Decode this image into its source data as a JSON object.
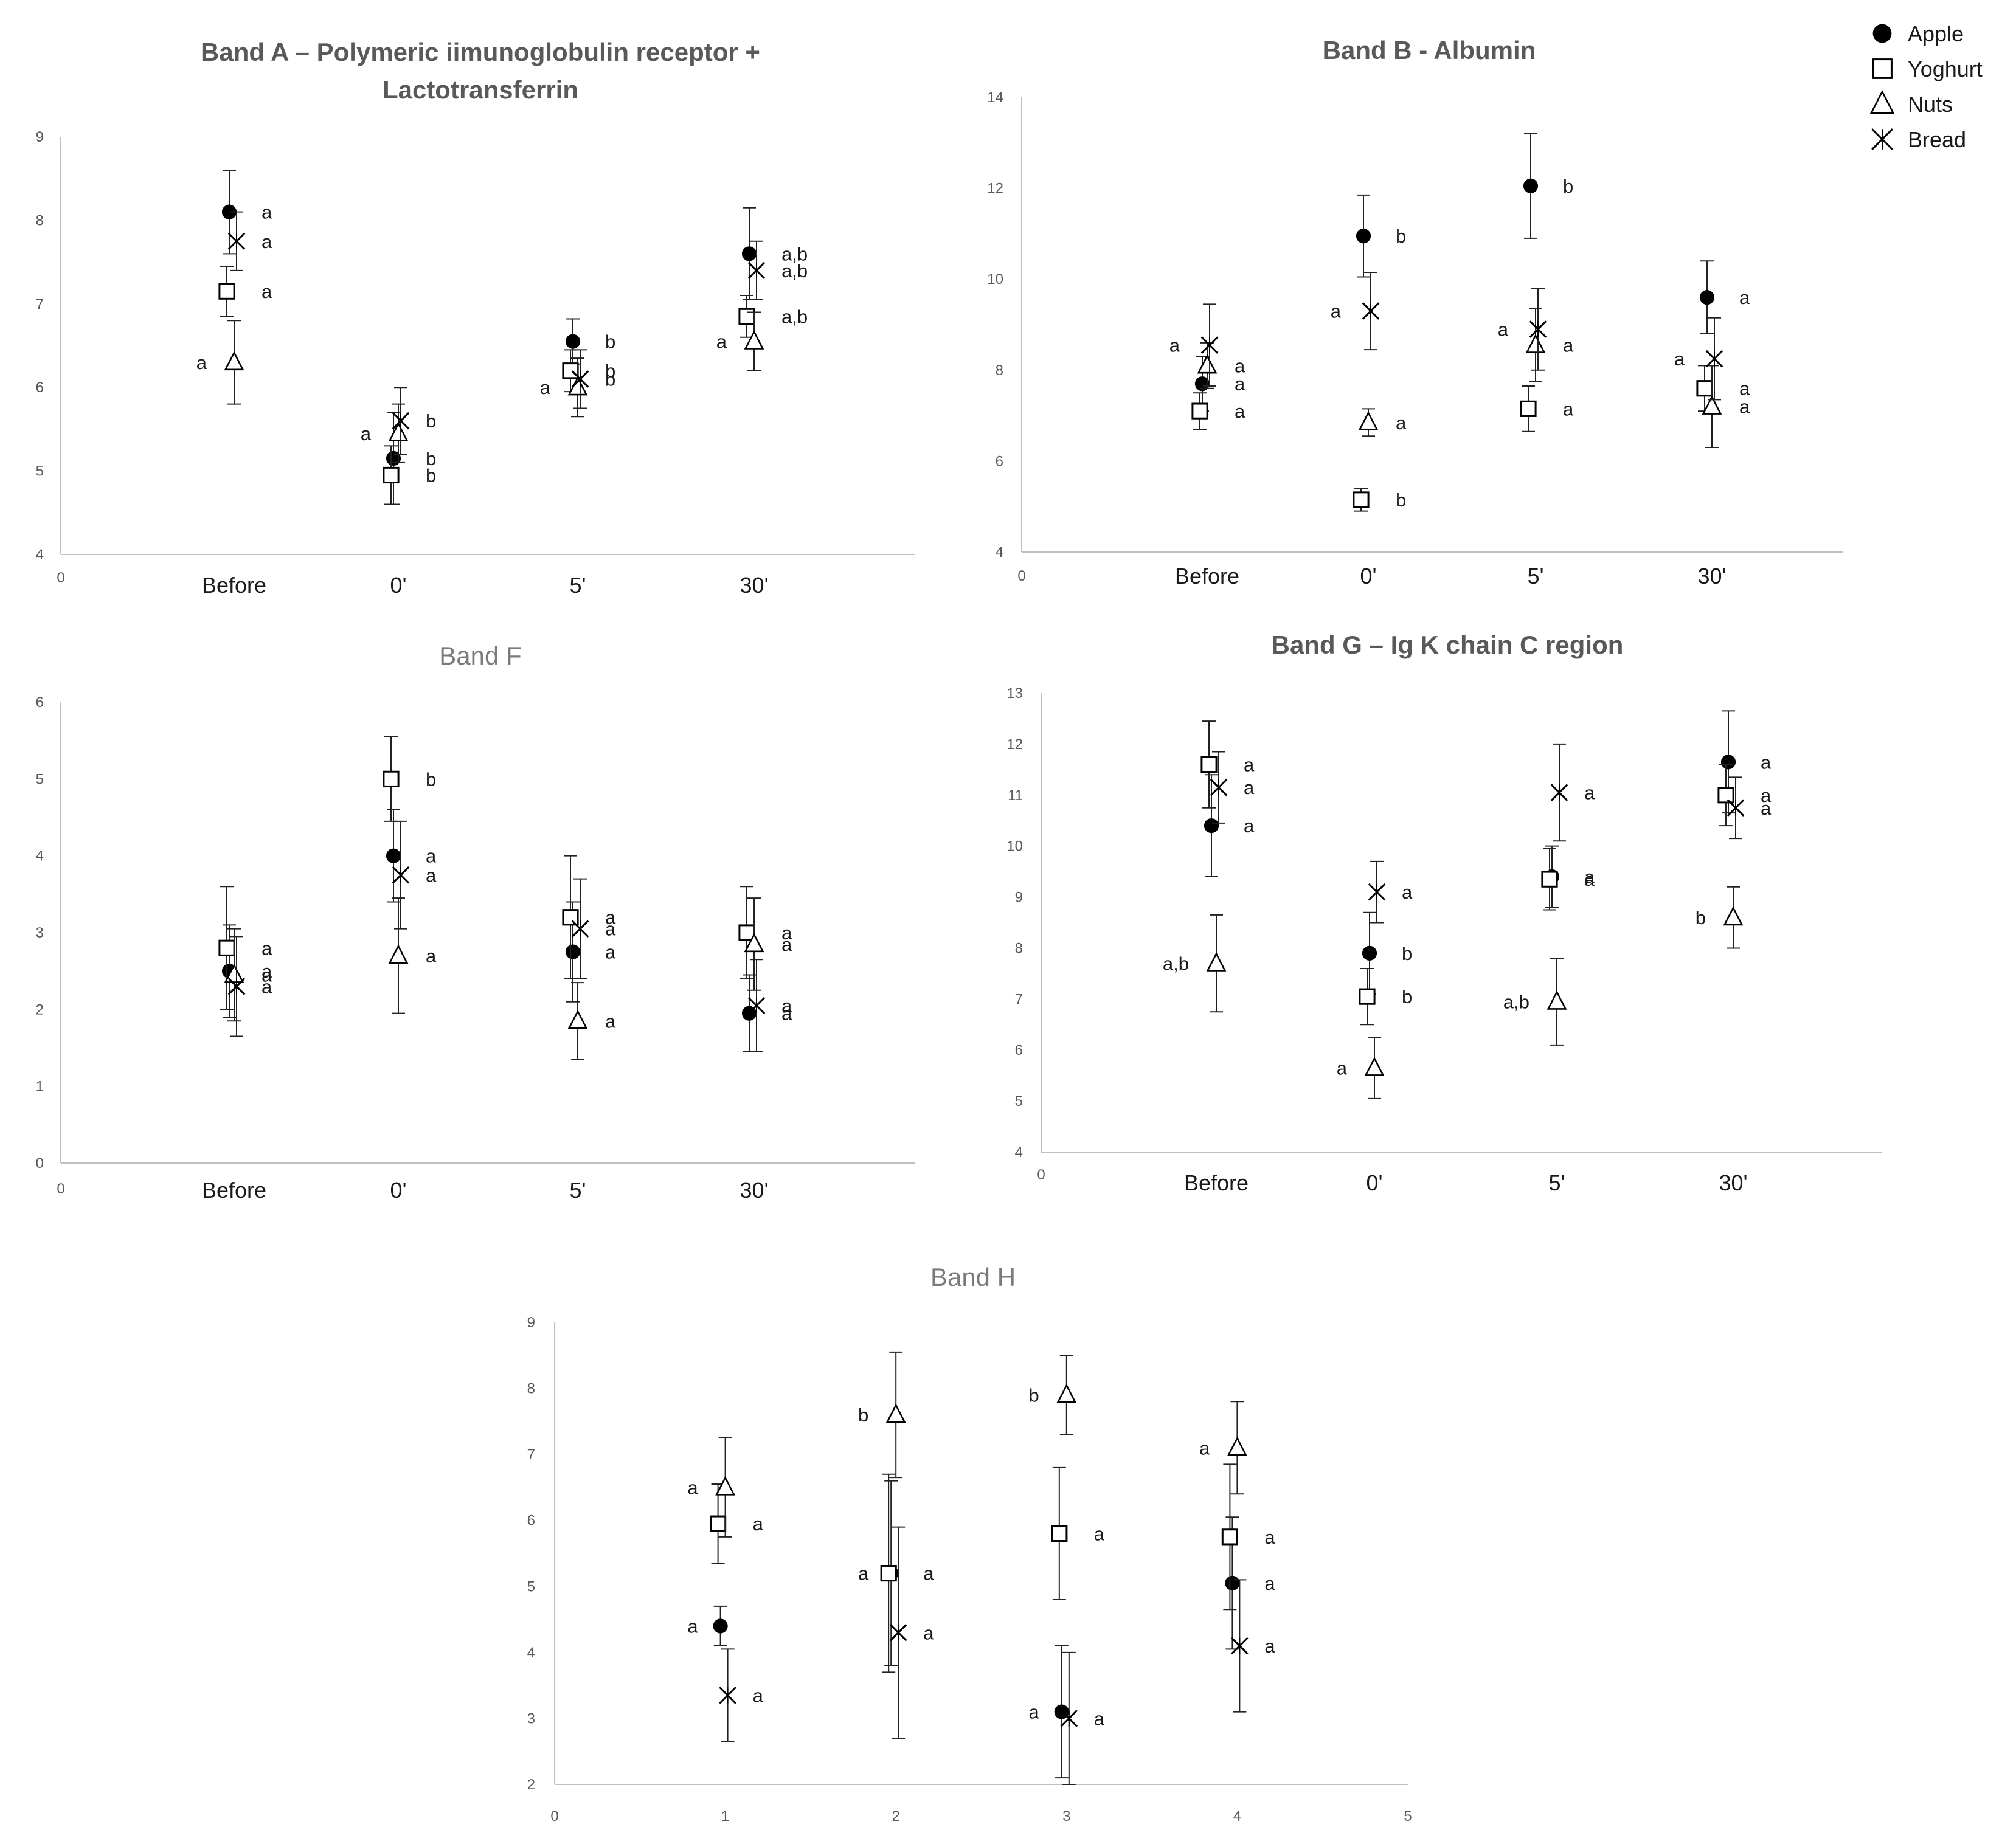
{
  "legend": [
    {
      "name": "Apple",
      "marker": "filled-circle"
    },
    {
      "name": "Yoghurt",
      "marker": "open-square"
    },
    {
      "name": "Nuts",
      "marker": "open-triangle"
    },
    {
      "name": "Bread",
      "marker": "star-cross"
    }
  ],
  "chart_data": [
    {
      "id": "A",
      "type": "scatter",
      "title": [
        "Band A – Polymeric iimunoglobulin receptor +",
        "Lactotransferrin"
      ],
      "ylim": [
        4,
        9
      ],
      "yticks": [
        4,
        5,
        6,
        7,
        8,
        9
      ],
      "xlim": [
        0,
        5
      ],
      "x_origin_label": "0",
      "categories": [
        "Before",
        "0'",
        "5'",
        "30'"
      ],
      "series": [
        {
          "name": "Apple",
          "marker": "filled-circle",
          "values": [
            8.1,
            5.15,
            6.55,
            7.6
          ],
          "errors": [
            0.5,
            0.55,
            0.27,
            0.55
          ],
          "labels": [
            "a",
            "b",
            "b",
            "a,b"
          ]
        },
        {
          "name": "Yoghurt",
          "marker": "open-square",
          "values": [
            7.15,
            4.95,
            6.2,
            6.85
          ],
          "errors": [
            0.3,
            0.35,
            0.25,
            0.25
          ],
          "labels": [
            "a",
            "b",
            "b",
            "a,b"
          ]
        },
        {
          "name": "Nuts",
          "marker": "open-triangle",
          "values": [
            6.3,
            5.45,
            6.0,
            6.55
          ],
          "errors": [
            0.5,
            0.35,
            0.35,
            0.35
          ],
          "labels": [
            "a",
            "a",
            "a",
            "a"
          ]
        },
        {
          "name": "Bread",
          "marker": "star-cross",
          "values": [
            7.75,
            5.6,
            6.1,
            7.4
          ],
          "errors": [
            0.35,
            0.4,
            0.35,
            0.35
          ],
          "labels": [
            "a",
            "b",
            "b",
            "a,b"
          ]
        }
      ]
    },
    {
      "id": "B",
      "type": "scatter",
      "title": [
        "Band B - Albumin"
      ],
      "ylim": [
        4,
        14
      ],
      "yticks": [
        4,
        6,
        8,
        10,
        12,
        14
      ],
      "xlim": [
        0,
        5
      ],
      "x_origin_label": "0",
      "categories": [
        "Before",
        "0'",
        "5'",
        "30'"
      ],
      "series": [
        {
          "name": "Apple",
          "marker": "filled-circle",
          "values": [
            7.7,
            10.95,
            12.05,
            9.6
          ],
          "errors": [
            0.6,
            0.9,
            1.15,
            0.8
          ],
          "labels": [
            "a",
            "b",
            "b",
            "a"
          ]
        },
        {
          "name": "Yoghurt",
          "marker": "open-square",
          "values": [
            7.1,
            5.15,
            7.15,
            7.6
          ],
          "errors": [
            0.4,
            0.25,
            0.5,
            0.5
          ],
          "labels": [
            "a",
            "b",
            "a",
            "a"
          ]
        },
        {
          "name": "Nuts",
          "marker": "open-triangle",
          "values": [
            8.1,
            6.85,
            8.55,
            7.2
          ],
          "errors": [
            0.5,
            0.3,
            0.8,
            0.9
          ],
          "labels": [
            "a",
            "a",
            "a",
            "a"
          ]
        },
        {
          "name": "Bread",
          "marker": "star-cross",
          "values": [
            8.55,
            9.3,
            8.9,
            8.25
          ],
          "errors": [
            0.9,
            0.85,
            0.9,
            0.9
          ],
          "labels": [
            "a",
            "a",
            "a",
            "a"
          ]
        }
      ]
    },
    {
      "id": "F",
      "type": "scatter",
      "title": [
        "Band F"
      ],
      "title_weight": "normal",
      "ylim": [
        0,
        6
      ],
      "yticks": [
        0,
        1,
        2,
        3,
        4,
        5,
        6
      ],
      "xlim": [
        0,
        5
      ],
      "x_origin_label": "0",
      "categories": [
        "Before",
        "0'",
        "5'",
        "30'"
      ],
      "series": [
        {
          "name": "Apple",
          "marker": "filled-circle",
          "values": [
            2.5,
            4.0,
            2.75,
            1.95
          ],
          "errors": [
            0.6,
            0.6,
            0.65,
            0.5
          ],
          "labels": [
            "a",
            "a",
            "a",
            "a"
          ]
        },
        {
          "name": "Yoghurt",
          "marker": "open-square",
          "values": [
            2.8,
            5.0,
            3.2,
            3.0
          ],
          "errors": [
            0.8,
            0.55,
            0.8,
            0.6
          ],
          "labels": [
            "a",
            "b",
            "a",
            "a"
          ]
        },
        {
          "name": "Nuts",
          "marker": "open-triangle",
          "values": [
            2.45,
            2.7,
            1.85,
            2.85
          ],
          "errors": [
            0.6,
            0.75,
            0.5,
            0.6
          ],
          "labels": [
            "a",
            "a",
            "a",
            "a"
          ]
        },
        {
          "name": "Bread",
          "marker": "star-cross",
          "values": [
            2.3,
            3.75,
            3.05,
            2.05
          ],
          "errors": [
            0.65,
            0.7,
            0.65,
            0.6
          ],
          "labels": [
            "a",
            "a",
            "a",
            "a"
          ]
        }
      ]
    },
    {
      "id": "G",
      "type": "scatter",
      "title": [
        "Band G – Ig K chain C region"
      ],
      "ylim": [
        4,
        13
      ],
      "yticks": [
        4,
        5,
        6,
        7,
        8,
        9,
        10,
        11,
        12,
        13
      ],
      "xlim": [
        0,
        5
      ],
      "x_origin_label": "0",
      "categories": [
        "Before",
        "0'",
        "5'",
        "30'"
      ],
      "series": [
        {
          "name": "Apple",
          "marker": "filled-circle",
          "values": [
            10.4,
            7.9,
            9.4,
            11.65
          ],
          "errors": [
            1.0,
            0.8,
            0.6,
            1.0
          ],
          "labels": [
            "a",
            "b",
            "a",
            "a"
          ]
        },
        {
          "name": "Yoghurt",
          "marker": "open-square",
          "values": [
            11.6,
            7.05,
            9.35,
            11.0
          ],
          "errors": [
            0.85,
            0.55,
            0.6,
            0.6
          ],
          "labels": [
            "a",
            "b",
            "a",
            "a"
          ]
        },
        {
          "name": "Nuts",
          "marker": "open-triangle",
          "values": [
            7.7,
            5.65,
            6.95,
            8.6
          ],
          "errors": [
            0.95,
            0.6,
            0.85,
            0.6
          ],
          "labels": [
            "a,b",
            "a",
            "a,b",
            "b"
          ]
        },
        {
          "name": "Bread",
          "marker": "star-cross",
          "values": [
            11.15,
            9.1,
            11.05,
            10.75
          ],
          "errors": [
            0.7,
            0.6,
            0.95,
            0.6
          ],
          "labels": [
            "a",
            "a",
            "a",
            "a"
          ]
        }
      ]
    },
    {
      "id": "H",
      "type": "scatter",
      "title": [
        "Band H"
      ],
      "title_weight": "normal",
      "ylim": [
        2,
        9
      ],
      "yticks": [
        2,
        3,
        4,
        5,
        6,
        7,
        8,
        9
      ],
      "xlim": [
        0,
        5
      ],
      "xticks": [
        0,
        1,
        2,
        3,
        4,
        5
      ],
      "x": [
        1,
        2,
        3,
        4
      ],
      "series": [
        {
          "name": "Apple",
          "marker": "filled-circle",
          "values": [
            4.4,
            5.2,
            3.1,
            5.05
          ],
          "errors": [
            0.3,
            1.4,
            1.0,
            1.0
          ],
          "labels": [
            "a",
            "a",
            "a",
            "a"
          ]
        },
        {
          "name": "Yoghurt",
          "marker": "open-square",
          "values": [
            5.95,
            5.2,
            5.8,
            5.75
          ],
          "errors": [
            0.6,
            1.5,
            1.0,
            1.1
          ],
          "labels": [
            "a",
            "a",
            "a",
            "a"
          ]
        },
        {
          "name": "Nuts",
          "marker": "open-triangle",
          "values": [
            6.5,
            7.6,
            7.9,
            7.1
          ],
          "errors": [
            0.75,
            0.95,
            0.6,
            0.7
          ],
          "labels": [
            "a",
            "b",
            "b",
            "a"
          ]
        },
        {
          "name": "Bread",
          "marker": "star-cross",
          "values": [
            3.35,
            4.3,
            3.0,
            4.1
          ],
          "errors": [
            0.7,
            1.6,
            1.0,
            1.0
          ],
          "labels": [
            "a",
            "a",
            "a",
            "a"
          ]
        }
      ]
    }
  ]
}
